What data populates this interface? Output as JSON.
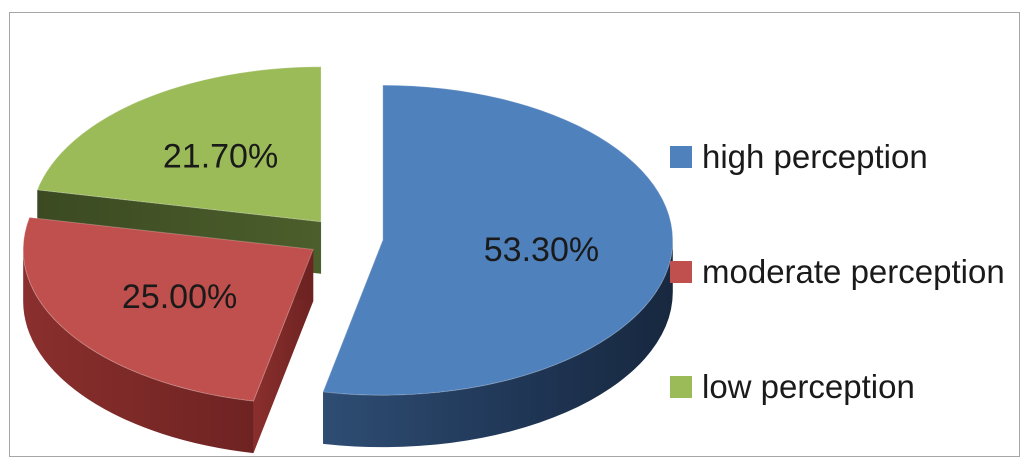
{
  "chart_data": {
    "type": "pie",
    "style": "3d-exploded",
    "title": "",
    "categories": [
      "high perception",
      "moderate perception",
      "low perception"
    ],
    "values": [
      53.3,
      25.0,
      21.7
    ],
    "data_labels": [
      "53.30%",
      "25.00%",
      "21.70%"
    ],
    "colors": [
      "#4f81bd",
      "#c0504d",
      "#9bbb59"
    ],
    "legend_position": "right"
  }
}
